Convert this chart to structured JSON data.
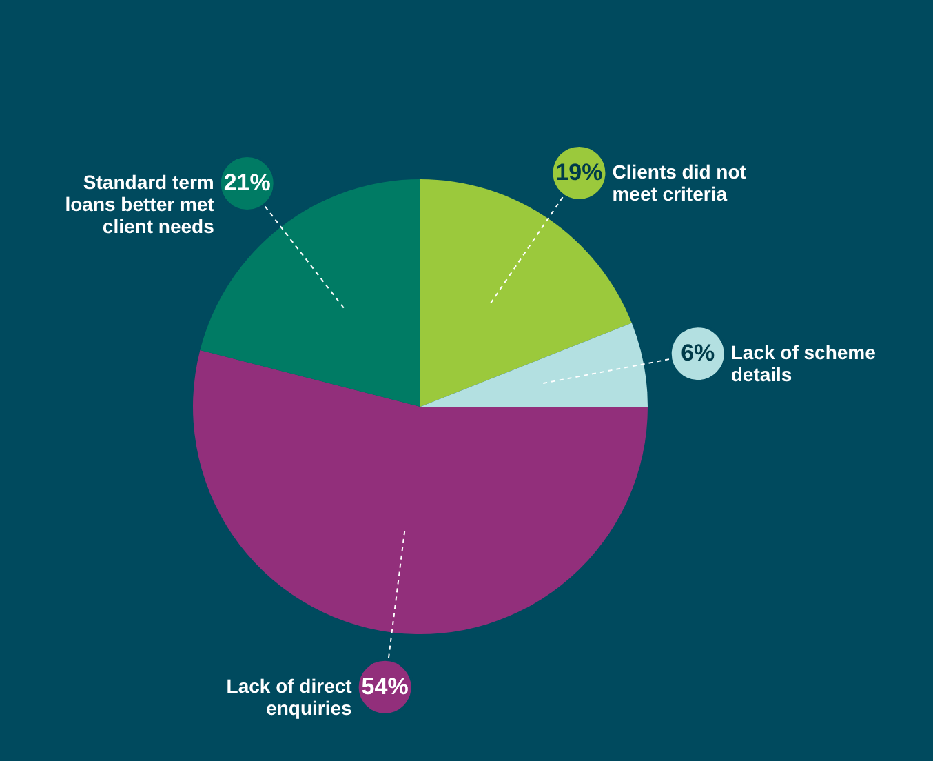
{
  "chart_data": {
    "type": "pie",
    "categories": [
      "Clients did not meet criteria",
      "Lack of scheme details",
      "Lack of direct enquiries",
      "Standard term loans better met client needs"
    ],
    "values": [
      19,
      6,
      54,
      21
    ],
    "colors": [
      "#9bc93c",
      "#b3e0e1",
      "#922f7b",
      "#007b64"
    ],
    "value_labels": [
      "19%",
      "6%",
      "54%",
      "21%"
    ]
  }
}
